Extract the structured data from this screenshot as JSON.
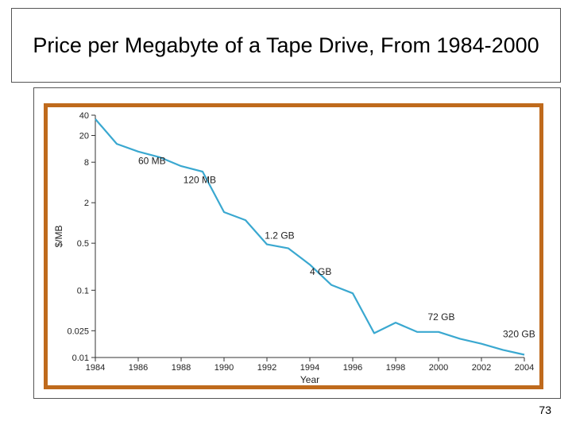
{
  "slide": {
    "title": "Price per Megabyte of a Tape Drive, From 1984-2000",
    "page_number": "73"
  },
  "colors": {
    "frame": "#bf6a1c",
    "line": "#3aa8d0",
    "axis": "#333333"
  },
  "chart_data": {
    "type": "line",
    "title": "",
    "xlabel": "Year",
    "ylabel": "$/MB",
    "y_scale": "log",
    "xlim": [
      1984,
      2004
    ],
    "ylim": [
      0.01,
      40
    ],
    "x_ticks": [
      "1984",
      "1986",
      "1988",
      "1990",
      "1992",
      "1994",
      "1996",
      "1998",
      "2000",
      "2002",
      "2004"
    ],
    "y_ticks": [
      {
        "value": 40,
        "label": "40"
      },
      {
        "value": 20,
        "label": "20"
      },
      {
        "value": 8,
        "label": "8"
      },
      {
        "value": 2,
        "label": "2"
      },
      {
        "value": 0.5,
        "label": "0.5"
      },
      {
        "value": 0.1,
        "label": "0.1"
      },
      {
        "value": 0.025,
        "label": "0.025"
      },
      {
        "value": 0.01,
        "label": "0.01"
      }
    ],
    "grid": false,
    "series": [
      {
        "x": [
          1984,
          1985,
          1986,
          1987,
          1988,
          1989,
          1990,
          1991,
          1992,
          1993,
          1994,
          1995,
          1996,
          1997,
          1998,
          1999,
          2000,
          2001,
          2002,
          2003,
          2004
        ],
        "y": [
          35,
          15,
          11.5,
          9.5,
          7,
          5.8,
          1.45,
          1.1,
          0.48,
          0.42,
          0.24,
          0.12,
          0.09,
          0.023,
          0.033,
          0.024,
          0.024,
          0.019,
          0.016,
          0.013,
          0.011
        ]
      }
    ],
    "annotations": [
      {
        "text": "60 MB",
        "x": 1986,
        "y": 7.5
      },
      {
        "text": "120 MB",
        "x": 1988.1,
        "y": 3.9
      },
      {
        "text": "1.2 GB",
        "x": 1991.9,
        "y": 0.58
      },
      {
        "text": "4 GB",
        "x": 1994,
        "y": 0.17
      },
      {
        "text": "72 GB",
        "x": 1999.5,
        "y": 0.036
      },
      {
        "text": "320 GB",
        "x": 2003,
        "y": 0.02
      }
    ]
  }
}
